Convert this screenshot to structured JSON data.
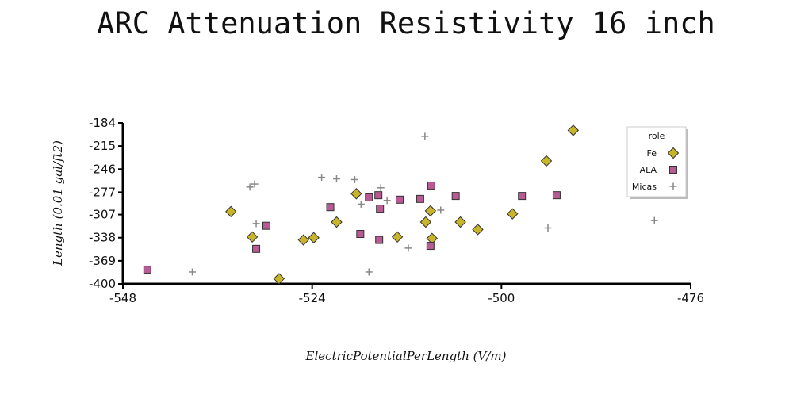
{
  "chart_data": {
    "type": "scatter",
    "title": "ARC Attenuation Resistivity 16 inch",
    "xlabel": "ElectricPotentialPerLength (V/m)",
    "ylabel": "Length (0.01 gal/ft2)",
    "xlim": [
      -548,
      -476
    ],
    "ylim": [
      -400,
      -184
    ],
    "x_ticks": [
      "-548",
      "-524",
      "-500",
      "-476"
    ],
    "y_ticks": [
      "-184",
      "-215",
      "-246",
      "-277",
      "-307",
      "-338",
      "-369",
      "-400"
    ],
    "legend": {
      "title": "role",
      "position": "top-right"
    },
    "series": [
      {
        "name": "Fe",
        "marker": "diamond",
        "color": "#c9b52a",
        "x": [
          -534.3,
          -531.6,
          -528.2,
          -525.1,
          -523.8,
          -520.9,
          -518.4,
          -513.2,
          -509.6,
          -509.0,
          -508.8,
          -505.2,
          -503.0,
          -498.6,
          -494.3,
          -490.9
        ],
        "y": [
          -303,
          -337,
          -393,
          -341,
          -338,
          -317,
          -279,
          -337,
          -317,
          -302,
          -339,
          -317,
          -327,
          -306,
          -235,
          -194
        ]
      },
      {
        "name": "ALA",
        "marker": "square",
        "color": "#b85a94",
        "x": [
          -544.9,
          -531.1,
          -529.8,
          -521.7,
          -517.9,
          -516.8,
          -515.6,
          -515.4,
          -515.5,
          -512.9,
          -510.3,
          -508.9,
          -509.0,
          -505.8,
          -497.4,
          -493.0
        ],
        "y": [
          -381,
          -353,
          -322,
          -297,
          -333,
          -284,
          -281,
          -299,
          -341,
          -287,
          -286,
          -268,
          -349,
          -282,
          -282,
          -281
        ]
      },
      {
        "name": "Micas",
        "marker": "plus",
        "color": "#888888",
        "x": [
          -539.2,
          -531.9,
          -531.3,
          -531.1,
          -522.8,
          -520.9,
          -518.6,
          -517.8,
          -516.8,
          -515.3,
          -514.5,
          -511.8,
          -509.7,
          -507.7,
          -494.1,
          -480.6
        ],
        "y": [
          -384,
          -270,
          -266,
          -319,
          -257,
          -259,
          -260,
          -293,
          -384,
          -271,
          -288,
          -352,
          -202,
          -301,
          -325,
          -315
        ]
      }
    ]
  }
}
